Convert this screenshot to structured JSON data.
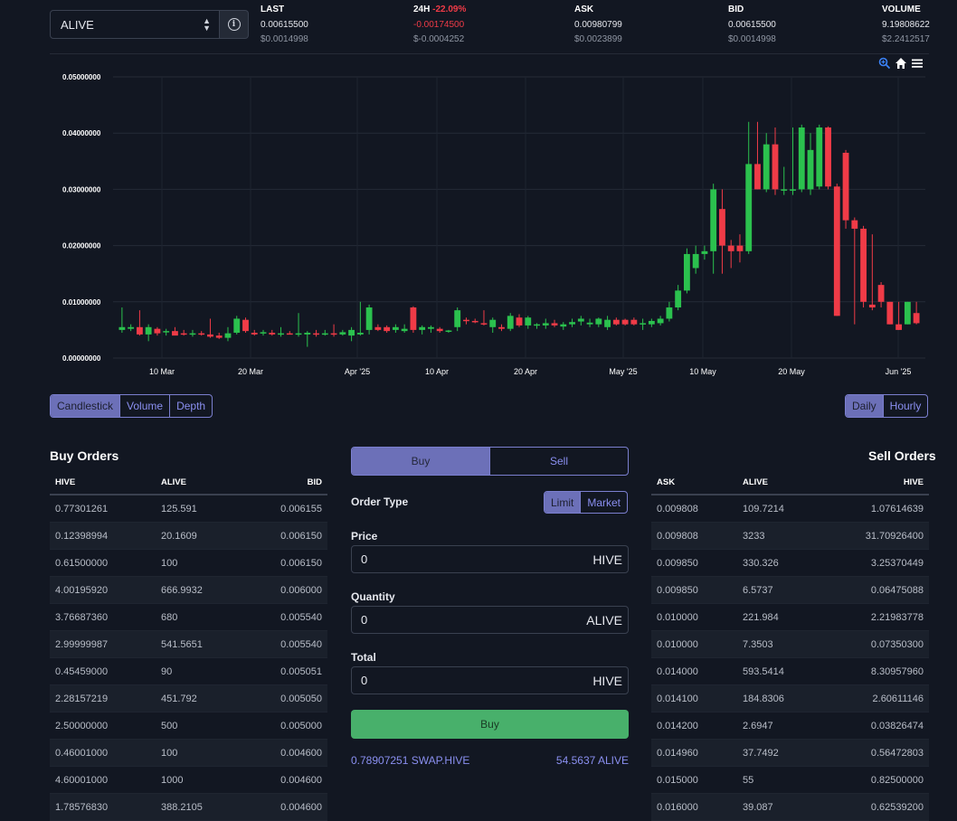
{
  "pair": {
    "selected": "ALIVE"
  },
  "stats": {
    "last": {
      "label": "LAST",
      "value": "0.00615500",
      "usd": "$0.0014998"
    },
    "h24": {
      "label": "24H",
      "pct": "-22.09%",
      "value": "-0.00174500",
      "usd": "$-0.0004252"
    },
    "ask": {
      "label": "ASK",
      "value": "0.00980799",
      "usd": "$0.0023899"
    },
    "bid": {
      "label": "BID",
      "value": "0.00615500",
      "usd": "$0.0014998"
    },
    "volume": {
      "label": "VOLUME",
      "value": "9.19808622",
      "usd": "$2.2412517"
    }
  },
  "colors": {
    "up": "#2bc14e",
    "down": "#ef3b47",
    "accent": "#7b7fcf",
    "buy": "#48b06b"
  },
  "chart_data": {
    "type": "candlestick",
    "y_ticks": [
      "0.05000000",
      "0.04000000",
      "0.03000000",
      "0.02000000",
      "0.01000000",
      "0.00000000"
    ],
    "ylim": [
      0,
      0.05
    ],
    "x_ticks": [
      "10 Mar",
      "20 Mar",
      "Apr '25",
      "10 Apr",
      "20 Apr",
      "May '25",
      "10 May",
      "20 May",
      "Jun '25"
    ],
    "grid": true,
    "candles": [
      {
        "o": 0.005,
        "h": 0.009,
        "l": 0.0045,
        "c": 0.0055
      },
      {
        "o": 0.0052,
        "h": 0.006,
        "l": 0.0048,
        "c": 0.0055
      },
      {
        "o": 0.0055,
        "h": 0.0085,
        "l": 0.004,
        "c": 0.0042
      },
      {
        "o": 0.0042,
        "h": 0.006,
        "l": 0.003,
        "c": 0.0055
      },
      {
        "o": 0.0052,
        "h": 0.0055,
        "l": 0.004,
        "c": 0.0044
      },
      {
        "o": 0.0046,
        "h": 0.0052,
        "l": 0.004,
        "c": 0.0048
      },
      {
        "o": 0.0048,
        "h": 0.0055,
        "l": 0.0042,
        "c": 0.004
      },
      {
        "o": 0.0044,
        "h": 0.005,
        "l": 0.004,
        "c": 0.0042
      },
      {
        "o": 0.0042,
        "h": 0.005,
        "l": 0.0038,
        "c": 0.0044
      },
      {
        "o": 0.0044,
        "h": 0.0048,
        "l": 0.004,
        "c": 0.0042
      },
      {
        "o": 0.0042,
        "h": 0.007,
        "l": 0.0036,
        "c": 0.0038
      },
      {
        "o": 0.004,
        "h": 0.0045,
        "l": 0.0034,
        "c": 0.0036
      },
      {
        "o": 0.0036,
        "h": 0.0055,
        "l": 0.003,
        "c": 0.0044
      },
      {
        "o": 0.0045,
        "h": 0.0075,
        "l": 0.0042,
        "c": 0.007
      },
      {
        "o": 0.0068,
        "h": 0.0072,
        "l": 0.0045,
        "c": 0.0048
      },
      {
        "o": 0.0045,
        "h": 0.005,
        "l": 0.004,
        "c": 0.0042
      },
      {
        "o": 0.0044,
        "h": 0.005,
        "l": 0.004,
        "c": 0.0046
      },
      {
        "o": 0.0045,
        "h": 0.005,
        "l": 0.004,
        "c": 0.0042
      },
      {
        "o": 0.0042,
        "h": 0.0055,
        "l": 0.0038,
        "c": 0.0044
      },
      {
        "o": 0.0044,
        "h": 0.0048,
        "l": 0.0042,
        "c": 0.0043
      },
      {
        "o": 0.0043,
        "h": 0.008,
        "l": 0.0038,
        "c": 0.0044
      },
      {
        "o": 0.0042,
        "h": 0.0048,
        "l": 0.002,
        "c": 0.0045
      },
      {
        "o": 0.0044,
        "h": 0.005,
        "l": 0.0038,
        "c": 0.0042
      },
      {
        "o": 0.0043,
        "h": 0.005,
        "l": 0.004,
        "c": 0.0044
      },
      {
        "o": 0.0044,
        "h": 0.006,
        "l": 0.0038,
        "c": 0.0042
      },
      {
        "o": 0.0042,
        "h": 0.005,
        "l": 0.004,
        "c": 0.0046
      },
      {
        "o": 0.004,
        "h": 0.0055,
        "l": 0.003,
        "c": 0.005
      },
      {
        "o": 0.0042,
        "h": 0.01,
        "l": 0.004,
        "c": 0.0045
      },
      {
        "o": 0.005,
        "h": 0.0095,
        "l": 0.0042,
        "c": 0.009
      },
      {
        "o": 0.0055,
        "h": 0.006,
        "l": 0.0048,
        "c": 0.005
      },
      {
        "o": 0.0055,
        "h": 0.0058,
        "l": 0.0045,
        "c": 0.0048
      },
      {
        "o": 0.005,
        "h": 0.006,
        "l": 0.0045,
        "c": 0.0055
      },
      {
        "o": 0.0048,
        "h": 0.006,
        "l": 0.0045,
        "c": 0.0052
      },
      {
        "o": 0.009,
        "h": 0.0092,
        "l": 0.0045,
        "c": 0.005
      },
      {
        "o": 0.005,
        "h": 0.0058,
        "l": 0.0042,
        "c": 0.0055
      },
      {
        "o": 0.0052,
        "h": 0.0058,
        "l": 0.0045,
        "c": 0.0055
      },
      {
        "o": 0.0052,
        "h": 0.0055,
        "l": 0.0045,
        "c": 0.0048
      },
      {
        "o": 0.0048,
        "h": 0.005,
        "l": 0.0045,
        "c": 0.0049
      },
      {
        "o": 0.0055,
        "h": 0.009,
        "l": 0.0048,
        "c": 0.0085
      },
      {
        "o": 0.0068,
        "h": 0.0072,
        "l": 0.006,
        "c": 0.0066
      },
      {
        "o": 0.0066,
        "h": 0.007,
        "l": 0.0062,
        "c": 0.0064
      },
      {
        "o": 0.0062,
        "h": 0.0085,
        "l": 0.0058,
        "c": 0.006
      },
      {
        "o": 0.0055,
        "h": 0.0072,
        "l": 0.0045,
        "c": 0.0068
      },
      {
        "o": 0.0055,
        "h": 0.006,
        "l": 0.0048,
        "c": 0.0052
      },
      {
        "o": 0.0052,
        "h": 0.008,
        "l": 0.0048,
        "c": 0.0075
      },
      {
        "o": 0.0072,
        "h": 0.0078,
        "l": 0.0055,
        "c": 0.0058
      },
      {
        "o": 0.0058,
        "h": 0.0075,
        "l": 0.0052,
        "c": 0.0072
      },
      {
        "o": 0.0058,
        "h": 0.0062,
        "l": 0.0052,
        "c": 0.006
      },
      {
        "o": 0.0058,
        "h": 0.007,
        "l": 0.0052,
        "c": 0.0062
      },
      {
        "o": 0.0062,
        "h": 0.0068,
        "l": 0.0055,
        "c": 0.0058
      },
      {
        "o": 0.0056,
        "h": 0.0064,
        "l": 0.005,
        "c": 0.006
      },
      {
        "o": 0.006,
        "h": 0.007,
        "l": 0.0055,
        "c": 0.0064
      },
      {
        "o": 0.0065,
        "h": 0.0075,
        "l": 0.0058,
        "c": 0.007
      },
      {
        "o": 0.006,
        "h": 0.007,
        "l": 0.0055,
        "c": 0.0063
      },
      {
        "o": 0.006,
        "h": 0.0072,
        "l": 0.0055,
        "c": 0.007
      },
      {
        "o": 0.0055,
        "h": 0.0075,
        "l": 0.005,
        "c": 0.0068
      },
      {
        "o": 0.0068,
        "h": 0.0072,
        "l": 0.0058,
        "c": 0.006
      },
      {
        "o": 0.0068,
        "h": 0.007,
        "l": 0.0058,
        "c": 0.006
      },
      {
        "o": 0.0068,
        "h": 0.0072,
        "l": 0.0058,
        "c": 0.006
      },
      {
        "o": 0.006,
        "h": 0.007,
        "l": 0.005,
        "c": 0.0062
      },
      {
        "o": 0.006,
        "h": 0.007,
        "l": 0.0055,
        "c": 0.0066
      },
      {
        "o": 0.0062,
        "h": 0.0075,
        "l": 0.0058,
        "c": 0.007
      },
      {
        "o": 0.007,
        "h": 0.01,
        "l": 0.0065,
        "c": 0.009
      },
      {
        "o": 0.009,
        "h": 0.013,
        "l": 0.0085,
        "c": 0.012
      },
      {
        "o": 0.012,
        "h": 0.0195,
        "l": 0.0115,
        "c": 0.0185
      },
      {
        "o": 0.016,
        "h": 0.02,
        "l": 0.015,
        "c": 0.0185
      },
      {
        "o": 0.0185,
        "h": 0.02,
        "l": 0.0175,
        "c": 0.019
      },
      {
        "o": 0.019,
        "h": 0.031,
        "l": 0.015,
        "c": 0.03
      },
      {
        "o": 0.0265,
        "h": 0.03,
        "l": 0.015,
        "c": 0.02
      },
      {
        "o": 0.02,
        "h": 0.021,
        "l": 0.016,
        "c": 0.019
      },
      {
        "o": 0.02,
        "h": 0.022,
        "l": 0.017,
        "c": 0.019
      },
      {
        "o": 0.019,
        "h": 0.042,
        "l": 0.0185,
        "c": 0.0345
      },
      {
        "o": 0.0345,
        "h": 0.042,
        "l": 0.03,
        "c": 0.03
      },
      {
        "o": 0.03,
        "h": 0.04,
        "l": 0.0295,
        "c": 0.038
      },
      {
        "o": 0.038,
        "h": 0.041,
        "l": 0.029,
        "c": 0.03
      },
      {
        "o": 0.03,
        "h": 0.034,
        "l": 0.029,
        "c": 0.03
      },
      {
        "o": 0.03,
        "h": 0.041,
        "l": 0.029,
        "c": 0.03
      },
      {
        "o": 0.03,
        "h": 0.0415,
        "l": 0.0295,
        "c": 0.041
      },
      {
        "o": 0.03,
        "h": 0.04,
        "l": 0.029,
        "c": 0.037
      },
      {
        "o": 0.0305,
        "h": 0.0415,
        "l": 0.03,
        "c": 0.041
      },
      {
        "o": 0.041,
        "h": 0.0412,
        "l": 0.03,
        "c": 0.0305
      },
      {
        "o": 0.0305,
        "h": 0.031,
        "l": 0.0075,
        "c": 0.0075
      },
      {
        "o": 0.0365,
        "h": 0.037,
        "l": 0.023,
        "c": 0.0245
      },
      {
        "o": 0.0245,
        "h": 0.025,
        "l": 0.006,
        "c": 0.023
      },
      {
        "o": 0.023,
        "h": 0.0235,
        "l": 0.009,
        "c": 0.01
      },
      {
        "o": 0.0095,
        "h": 0.022,
        "l": 0.0085,
        "c": 0.009
      },
      {
        "o": 0.013,
        "h": 0.0135,
        "l": 0.009,
        "c": 0.01
      },
      {
        "o": 0.01,
        "h": 0.01,
        "l": 0.006,
        "c": 0.006
      },
      {
        "o": 0.006,
        "h": 0.01,
        "l": 0.005,
        "c": 0.005
      },
      {
        "o": 0.006,
        "h": 0.01,
        "l": 0.006,
        "c": 0.01
      },
      {
        "o": 0.008,
        "h": 0.01,
        "l": 0.006,
        "c": 0.0062
      }
    ]
  },
  "chart_view": {
    "label_candlestick": "Candlestick",
    "label_volume": "Volume",
    "label_depth": "Depth",
    "label_daily": "Daily",
    "label_hourly": "Hourly"
  },
  "buy_orders": {
    "title": "Buy Orders",
    "headers": [
      "HIVE",
      "ALIVE",
      "BID"
    ],
    "rows": [
      [
        "0.77301261",
        "125.591",
        "0.006155"
      ],
      [
        "0.12398994",
        "20.1609",
        "0.006150"
      ],
      [
        "0.61500000",
        "100",
        "0.006150"
      ],
      [
        "4.00195920",
        "666.9932",
        "0.006000"
      ],
      [
        "3.76687360",
        "680",
        "0.005540"
      ],
      [
        "2.99999987",
        "541.5651",
        "0.005540"
      ],
      [
        "0.45459000",
        "90",
        "0.005051"
      ],
      [
        "2.28157219",
        "451.792",
        "0.005050"
      ],
      [
        "2.50000000",
        "500",
        "0.005000"
      ],
      [
        "0.46001000",
        "100",
        "0.004600"
      ],
      [
        "4.60001000",
        "1000",
        "0.004600"
      ],
      [
        "1.78576830",
        "388.2105",
        "0.004600"
      ]
    ]
  },
  "sell_orders": {
    "title": "Sell Orders",
    "headers": [
      "ASK",
      "ALIVE",
      "HIVE"
    ],
    "rows": [
      [
        "0.009808",
        "109.7214",
        "1.07614639"
      ],
      [
        "0.009808",
        "3233",
        "31.70926400"
      ],
      [
        "0.009850",
        "330.326",
        "3.25370449"
      ],
      [
        "0.009850",
        "6.5737",
        "0.06475088"
      ],
      [
        "0.010000",
        "221.984",
        "2.21983778"
      ],
      [
        "0.010000",
        "7.3503",
        "0.07350300"
      ],
      [
        "0.014000",
        "593.5414",
        "8.30957960"
      ],
      [
        "0.014100",
        "184.8306",
        "2.60611146"
      ],
      [
        "0.014200",
        "2.6947",
        "0.03826474"
      ],
      [
        "0.014960",
        "37.7492",
        "0.56472803"
      ],
      [
        "0.015000",
        "55",
        "0.82500000"
      ],
      [
        "0.016000",
        "39.087",
        "0.62539200"
      ]
    ]
  },
  "form": {
    "tab_buy": "Buy",
    "tab_sell": "Sell",
    "order_type_label": "Order Type",
    "type_limit": "Limit",
    "type_market": "Market",
    "price_label": "Price",
    "price_value": "0",
    "price_unit": "HIVE",
    "quantity_label": "Quantity",
    "quantity_value": "0",
    "quantity_unit": "ALIVE",
    "total_label": "Total",
    "total_value": "0",
    "total_unit": "HIVE",
    "submit_label": "Buy",
    "balance_hive": "0.78907251 SWAP.HIVE",
    "balance_alive": "54.5637 ALIVE"
  }
}
